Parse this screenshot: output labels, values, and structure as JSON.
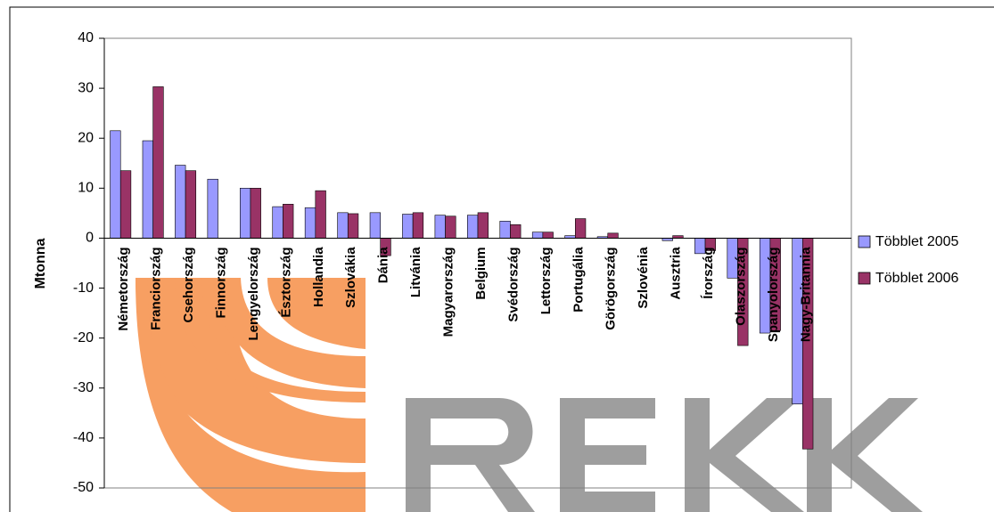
{
  "chart_data": {
    "type": "bar",
    "y_label": "Mtonna",
    "categories": [
      "Németország",
      "Franciország",
      "Csehország",
      "Finnország",
      "Lengyelország",
      "Észtország",
      "Hollandia",
      "Szlovákia",
      "Dánia",
      "Litvánia",
      "Magyarország",
      "Belgium",
      "Svédország",
      "Lettország",
      "Portugália",
      "Görögország",
      "Szlovénia",
      "Ausztria",
      "Írország",
      "Olaszország",
      "Spanyolország",
      "Nagy-Britannia"
    ],
    "series": [
      {
        "name": "Többlet 2005",
        "color": "#9999ff",
        "values": [
          21.5,
          19.5,
          14.6,
          11.8,
          10,
          6.3,
          6.1,
          5.1,
          5.1,
          4.8,
          4.6,
          4.6,
          3.4,
          1.2,
          0.5,
          0.3,
          0,
          -0.5,
          -3.1,
          -8,
          -19,
          -33.2
        ]
      },
      {
        "name": "Többlet 2006",
        "color": "#993366",
        "values": [
          13.5,
          30.3,
          13.5,
          0,
          10,
          6.8,
          9.5,
          4.9,
          -3.5,
          5.1,
          4.4,
          5.1,
          2.7,
          1.2,
          3.9,
          1.0,
          0,
          0.5,
          -2.5,
          -21.5,
          -18.5,
          -42.2
        ]
      }
    ],
    "ylim": [
      -50,
      40
    ],
    "yticks": [
      -50,
      -40,
      -30,
      -20,
      -10,
      0,
      10,
      20,
      30,
      40
    ],
    "legend": "right"
  }
}
